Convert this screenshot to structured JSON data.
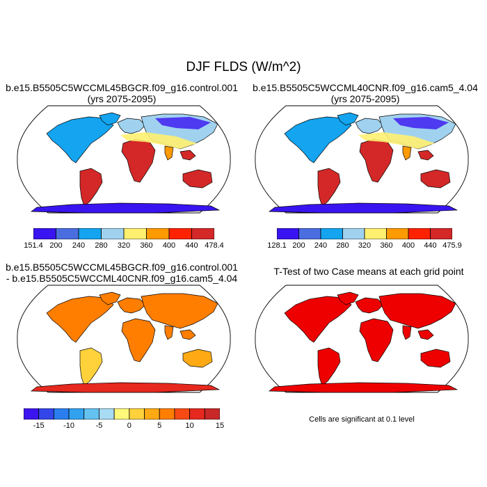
{
  "main_title": "DJF FLDS (W/m^2)",
  "panels": {
    "top_left": {
      "title_line1": "b.e15.B5505C5WCCML45BGCR.f09_g16.control.001",
      "title_line2": "(yrs 2075-2095)"
    },
    "top_right": {
      "title_line1": "b.e15.B5505C5WCCML40CNR.f09_g16.cam5_4.04",
      "title_line2": "(yrs 2075-2095)"
    },
    "bottom_left": {
      "title_line1": "b.e15.B5505C5WCCML45BGCR.f09_g16.control.001",
      "title_line2": "- b.e15.B5505C5WCCML40CNR.f09_g16.cam5_4.04"
    },
    "bottom_right": {
      "title_line1": "T-Test of two Case means at each grid point",
      "note": "Cells are significant at 0.1 level"
    }
  },
  "colorbars": {
    "top_left": {
      "colors": [
        "#3a14f0",
        "#4a6ee0",
        "#14a4f0",
        "#a0d2f0",
        "#fff070",
        "#ff9a00",
        "#ff2200",
        "#d42828"
      ],
      "labels": [
        "151.4",
        "200",
        "240",
        "280",
        "320",
        "360",
        "400",
        "440",
        "478.4"
      ]
    },
    "top_right": {
      "colors": [
        "#3a14f0",
        "#4a6ee0",
        "#14a4f0",
        "#a0d2f0",
        "#fff070",
        "#ff9a00",
        "#ff2200",
        "#d42828"
      ],
      "labels": [
        "128.1",
        "200",
        "240",
        "280",
        "320",
        "360",
        "400",
        "440",
        "475.9"
      ]
    },
    "bottom_left": {
      "colors": [
        "#3c14f0",
        "#3246ea",
        "#2a7ef0",
        "#32a2f0",
        "#64c2f0",
        "#a8dcf5",
        "#fff87a",
        "#ffd23c",
        "#ffaa14",
        "#ff7e00",
        "#f84a14",
        "#e6281e",
        "#c82828"
      ],
      "labels": [
        "-15",
        "-10",
        "-5",
        "0",
        "5",
        "10",
        "15"
      ]
    }
  },
  "map_colors": {
    "ocean": "#ffffff",
    "land_warm": "#d42828",
    "land_mid": "#ff9a00",
    "land_cool": "#a0d2f0",
    "land_cold": "#14a4f0",
    "diff_warm": "#ff7e00",
    "signif": "#ee0000"
  }
}
